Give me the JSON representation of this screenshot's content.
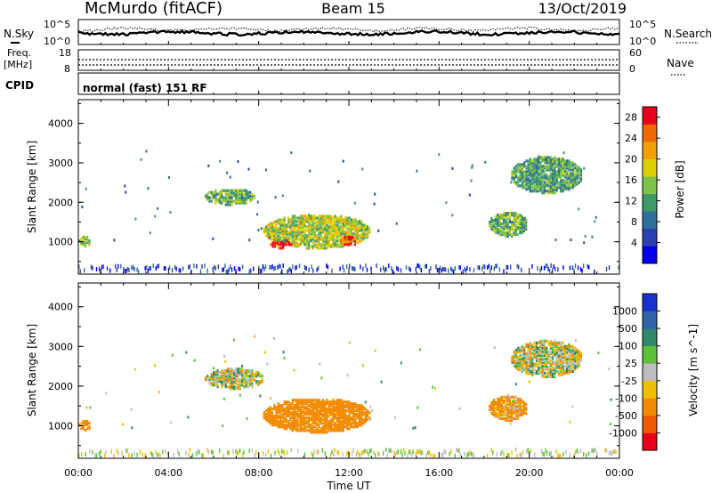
{
  "header": {
    "station": "McMurdo (fitACF)",
    "beam": "Beam 15",
    "date": "13/Oct/2019"
  },
  "status_panel": {
    "n_sky_label": "N.Sky",
    "n_search_label": "N.Search",
    "sky_ticks": [
      "10^5",
      "10^0"
    ],
    "search_ticks": [
      "10^5",
      "10^0"
    ],
    "freq_label_1": "Freq.",
    "freq_label_2": "[MHz]",
    "freq_ticks": [
      "18",
      "8"
    ],
    "nave_label": "Nave",
    "nave_ticks": [
      "60",
      "0"
    ],
    "cpid_label": "CPID",
    "cpid_text": "normal (fast) 151 RF"
  },
  "chart_data": [
    {
      "type": "heatmap",
      "name": "power",
      "xlabel": "Time UT",
      "ylabel": "Slant Range [km]",
      "xlim": [
        0,
        24
      ],
      "ylim": [
        180,
        4600
      ],
      "x_ticks": [
        "00:00",
        "04:00",
        "08:00",
        "12:00",
        "16:00",
        "20:00",
        "00:00"
      ],
      "y_ticks": [
        "1000",
        "2000",
        "3000",
        "4000"
      ],
      "colorbar": {
        "label": "Power [dB]",
        "ticks": [
          "4",
          "8",
          "12",
          "16",
          "20",
          "24",
          "28"
        ],
        "range": [
          0,
          30
        ],
        "colors": [
          "#0000ee",
          "#2a3fb0",
          "#2f6f9a",
          "#3e9a66",
          "#7fc24a",
          "#ddd000",
          "#f2a000",
          "#ee6a00",
          "#e8001a"
        ]
      },
      "regions": [
        {
          "t": [
            8.2,
            12.9
          ],
          "r": [
            800,
            1650
          ],
          "level": 0.55
        },
        {
          "t": [
            8.5,
            9.4
          ],
          "r": [
            800,
            1000
          ],
          "level": 0.95
        },
        {
          "t": [
            11.6,
            12.3
          ],
          "r": [
            850,
            1100
          ],
          "level": 0.85
        },
        {
          "t": [
            18.2,
            19.9
          ],
          "r": [
            1100,
            1700
          ],
          "level": 0.45
        },
        {
          "t": [
            19.2,
            22.3
          ],
          "r": [
            2200,
            3100
          ],
          "level": 0.4
        },
        {
          "t": [
            5.6,
            7.8
          ],
          "r": [
            1900,
            2300
          ],
          "level": 0.45
        },
        {
          "t": [
            0.0,
            0.5
          ],
          "r": [
            850,
            1100
          ],
          "level": 0.5
        }
      ]
    },
    {
      "type": "heatmap",
      "name": "velocity",
      "xlabel": "Time UT",
      "ylabel": "Slant Range [km]",
      "xlim": [
        0,
        24
      ],
      "ylim": [
        180,
        4600
      ],
      "x_ticks": [
        "00:00",
        "04:00",
        "08:00",
        "12:00",
        "16:00",
        "20:00",
        "00:00"
      ],
      "y_ticks": [
        "1000",
        "2000",
        "3000",
        "4000"
      ],
      "colorbar": {
        "label": "Velocity [m s^-1]",
        "ticks": [
          "1000",
          "500",
          "100",
          "25",
          "-25",
          "-100",
          "-500",
          "-1000"
        ],
        "colors": [
          "#1a2fd0",
          "#2f62a8",
          "#2f8a6a",
          "#5cc23a",
          "#bdbdbd",
          "#f0c000",
          "#f28a00",
          "#ee5a00",
          "#e8001a"
        ]
      },
      "regions": [
        {
          "t": [
            8.2,
            12.9
          ],
          "r": [
            800,
            1650
          ],
          "level": -200
        },
        {
          "t": [
            18.2,
            19.9
          ],
          "r": [
            1100,
            1700
          ],
          "level": -100
        },
        {
          "t": [
            19.2,
            22.3
          ],
          "r": [
            2200,
            3100
          ],
          "level": 0
        },
        {
          "t": [
            5.6,
            8.2
          ],
          "r": [
            1900,
            2400
          ],
          "level": 0
        },
        {
          "t": [
            0.0,
            0.5
          ],
          "r": [
            850,
            1100
          ],
          "level": -150
        }
      ]
    }
  ]
}
